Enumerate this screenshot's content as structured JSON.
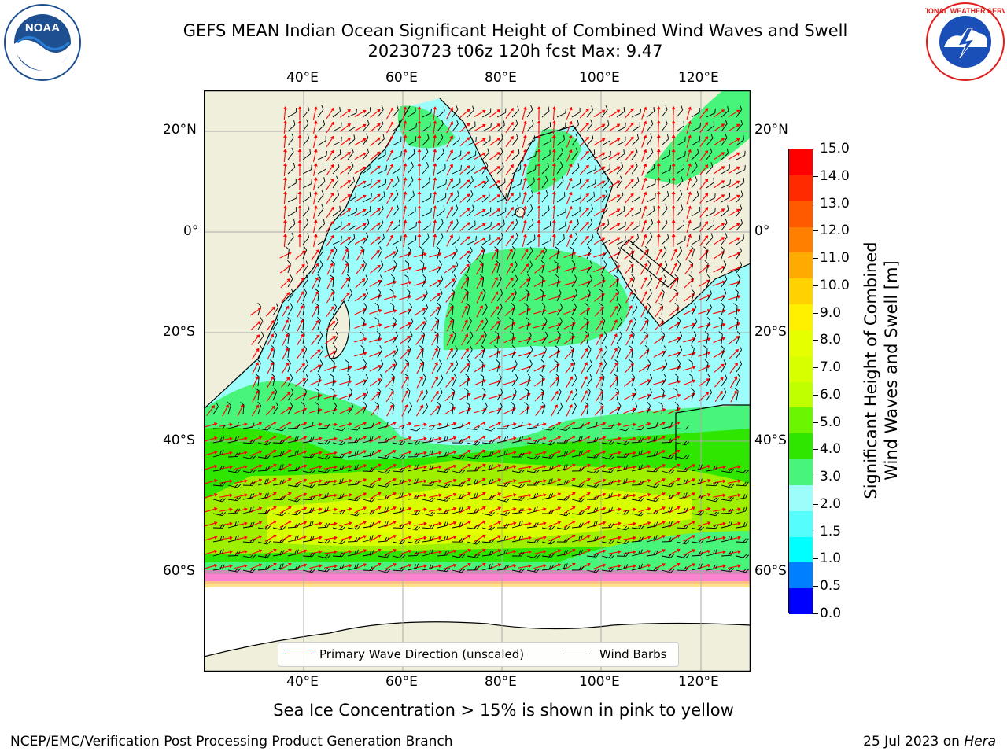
{
  "header": {
    "title_line1": "GEFS MEAN Indian Ocean Significant Height of Combined Wind Waves and Swell",
    "title_line2": "20230723 t06z 120h fcst   Max: 9.47"
  },
  "logos": {
    "left": {
      "icon": "noaa-logo",
      "text": "NOAA"
    },
    "right": {
      "icon": "nws-logo",
      "text": "NATIONAL WEATHER SERVICE"
    }
  },
  "map": {
    "top_lon_ticks": [
      "40°E",
      "60°E",
      "80°E",
      "100°E",
      "120°E"
    ],
    "bottom_lon_ticks": [
      "40°E",
      "60°E",
      "80°E",
      "100°E",
      "120°E"
    ],
    "left_lat_ticks": [
      "20°N",
      "0°",
      "20°S",
      "40°S",
      "60°S"
    ],
    "right_lat_ticks": [
      "20°N",
      "0°",
      "20°S",
      "40°S",
      "60°S"
    ],
    "land_color": "#efefdc",
    "wave_arrow_color": "#ff0000",
    "wind_barb_color": "#000000"
  },
  "colorbar": {
    "label_line1": "Significant Height of Combined",
    "label_line2": "Wind Waves and Swell [m]",
    "ticks": [
      "15.0",
      "14.0",
      "13.0",
      "12.0",
      "11.0",
      "10.0",
      "9.0",
      "8.0",
      "7.0",
      "6.0",
      "5.0",
      "4.0",
      "3.0",
      "2.0",
      "1.5",
      "1.0",
      "0.5",
      "0.0"
    ],
    "colors": [
      "#ff0000",
      "#ff2a00",
      "#ff5a00",
      "#ff8000",
      "#ffaa00",
      "#ffd200",
      "#fff000",
      "#e6ff00",
      "#d8ff00",
      "#bfff00",
      "#6cf500",
      "#2ee600",
      "#46f57a",
      "#9dfdfb",
      "#55fdfd",
      "#00ffff",
      "#0080ff",
      "#0000ff"
    ]
  },
  "legend": {
    "wave_label": "Primary Wave Direction (unscaled)",
    "wind_label": "Wind Barbs"
  },
  "caption": "Sea Ice Concentration > 15% is shown in pink to yellow",
  "footer": {
    "left": "NCEP/EMC/Verification Post Processing Product Generation Branch",
    "right_date": "25 Jul 2023 on ",
    "right_host": "Hera"
  }
}
